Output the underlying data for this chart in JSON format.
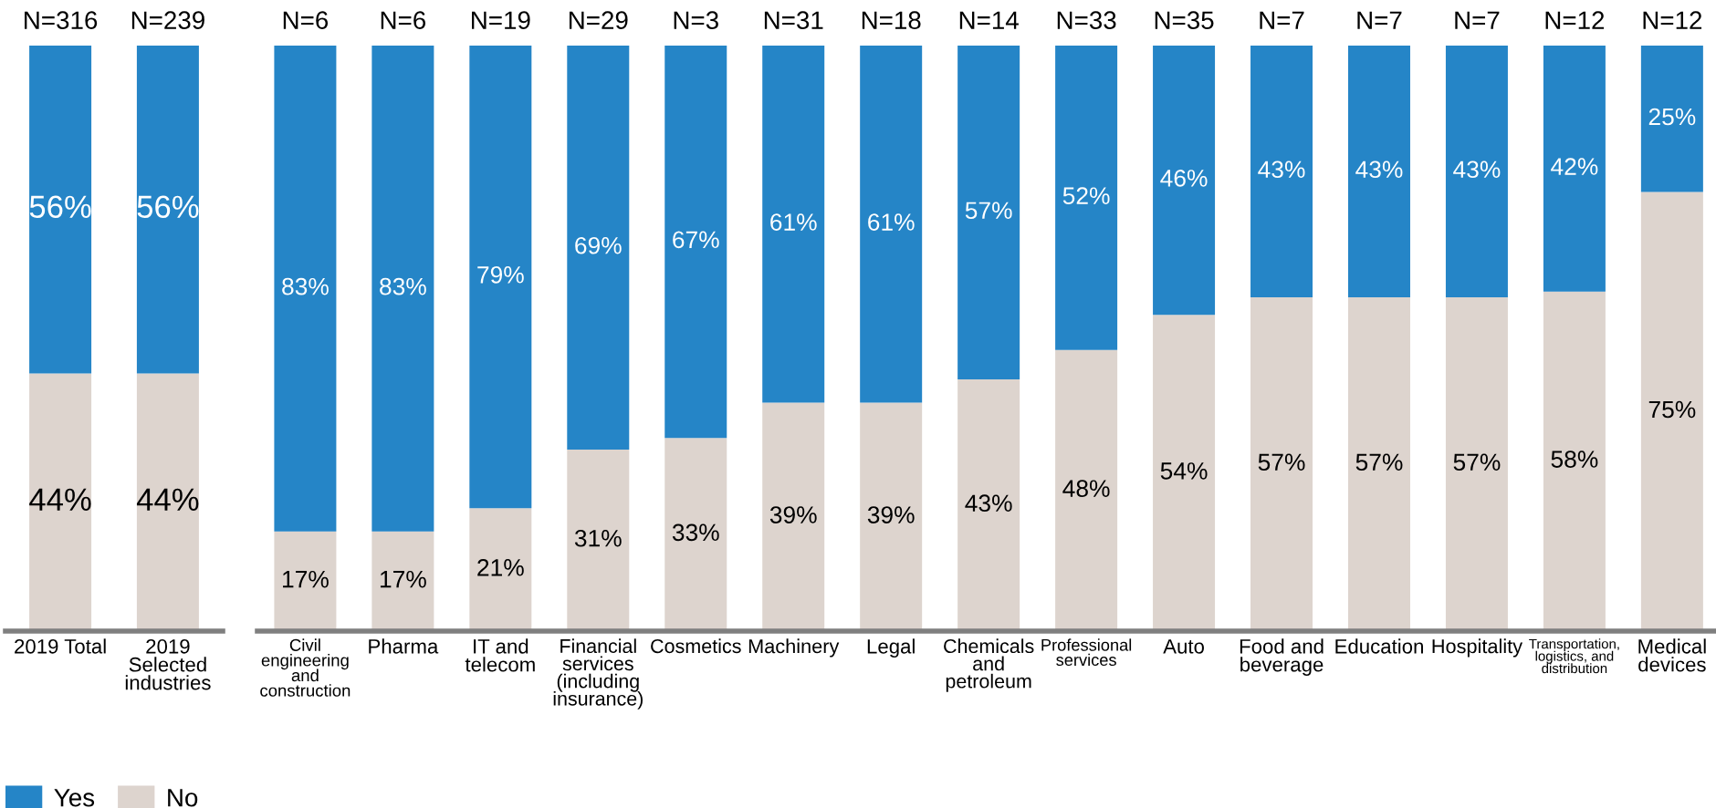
{
  "chart_data": [
    {
      "type": "bar",
      "stacked": true,
      "legend": "bottom left",
      "categories": [
        "2019 Total",
        "2019\nSelected\nindustries"
      ],
      "series": [
        {
          "name": "No",
          "color": "#ddd4ce",
          "values": [
            44,
            44
          ],
          "value_labels": [
            "44%",
            "44%"
          ]
        },
        {
          "name": "Yes",
          "color": "#2585c7",
          "values": [
            56,
            56
          ],
          "value_labels": [
            "56%",
            "56%"
          ]
        }
      ],
      "annotations": [
        {
          "text": "N=316",
          "x": "2019 Total",
          "y": 100
        },
        {
          "text": "N=239",
          "x": "2019\nSelected\nindustries",
          "y": 100
        }
      ]
    },
    {
      "type": "bar",
      "stacked": true,
      "categories": [
        "Civil\nengineering\nand\nconstruction",
        "Pharma",
        "IT and\ntelecom",
        "Financial\nservices\n(including\ninsurance)",
        "Cosmetics",
        "Machinery",
        "Legal",
        "Chemicals\nand\npetroleum",
        "Professional\nservices",
        "Auto",
        "Food and\nbeverage",
        "Education",
        "Hospitality",
        "Transportation,\nlogistics, and\ndistribution",
        "Medical\ndevices"
      ],
      "series": [
        {
          "color": "#ddd4ce",
          "values": [
            17,
            17,
            21,
            31,
            33,
            39,
            39,
            43,
            48,
            54,
            57,
            57,
            57,
            58,
            75
          ],
          "value_labels": [
            "17%",
            "17%",
            "21%",
            "31%",
            "33%",
            "39%",
            "39%",
            "43%",
            "48%",
            "54%",
            "57%",
            "57%",
            "57%",
            "58%",
            "75%"
          ]
        },
        {
          "color": "#2585c7",
          "values": [
            83,
            83,
            79,
            69,
            67,
            61,
            61,
            57,
            52,
            46,
            43,
            43,
            43,
            42,
            25
          ],
          "value_labels": [
            "83%",
            "83%",
            "79%",
            "69%",
            "67%",
            "61%",
            "61%",
            "57%",
            "52%",
            "46%",
            "43%",
            "43%",
            "43%",
            "42%",
            "25%"
          ]
        }
      ],
      "annotations": [
        {
          "text": "N=6",
          "x": "Civil\nengineering\nand\nconstruction",
          "y": 100
        },
        {
          "text": "N=6",
          "x": "Pharma",
          "y": 100
        },
        {
          "text": "N=19",
          "x": "IT and\ntelecom",
          "y": 100
        },
        {
          "text": "N=29",
          "x": "Financial\nservices\n(including\ninsurance)",
          "y": 100
        },
        {
          "text": "N=3",
          "x": "Cosmetics",
          "y": 100
        },
        {
          "text": "N=31",
          "x": "Machinery",
          "y": 100
        },
        {
          "text": "N=18",
          "x": "Legal",
          "y": 100
        },
        {
          "text": "N=14",
          "x": "Chemicals\nand\npetroleum",
          "y": 100
        },
        {
          "text": "N=33",
          "x": "Professional\nservices",
          "y": 100
        },
        {
          "text": "N=35",
          "x": "Auto",
          "y": 100
        },
        {
          "text": "N=7",
          "x": "Food and\nbeverage",
          "y": 100
        },
        {
          "text": "N=7",
          "x": "Education",
          "y": 100
        },
        {
          "text": "N=7",
          "x": "Hospitality",
          "y": 100
        },
        {
          "text": "N=12",
          "x": "Transportation,\nlogistics, and\ndistribution",
          "y": 100
        },
        {
          "text": "N=12",
          "x": "Medical\ndevices",
          "y": 100
        }
      ]
    }
  ]
}
